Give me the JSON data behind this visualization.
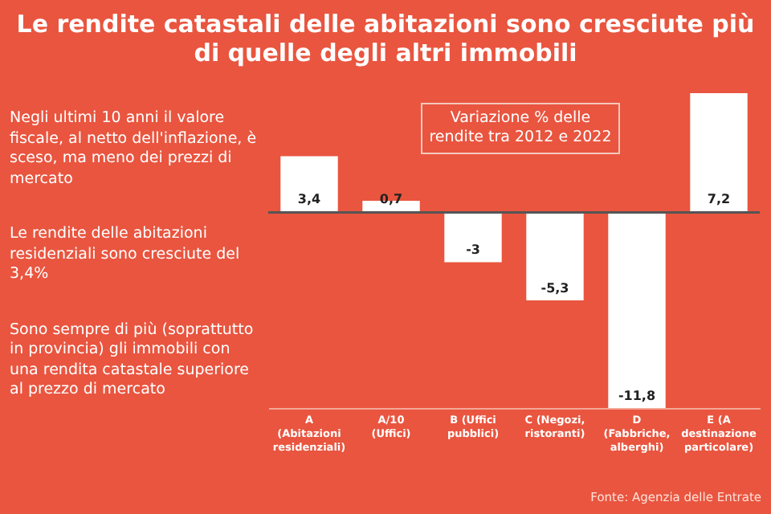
{
  "chart_data": {
    "type": "bar",
    "title": "Le rendite catastali delle abitazioni sono cresciute più di quelle degli altri immobili",
    "subtitle": "Variazione % delle rendite tra 2012 e 2022",
    "categories": [
      "A (Abitazioni residenziali)",
      "A/10 (Uffici)",
      "B (Uffici pubblici)",
      "C (Negozi, ristoranti)",
      "D (Fabbriche, alberghi)",
      "E (A destinazione particolare)"
    ],
    "values": [
      3.4,
      0.7,
      -3,
      -5.3,
      -11.8,
      7.2
    ],
    "value_labels": [
      "3,4",
      "0,7",
      "-3",
      "-5,3",
      "-11,8",
      "7,2"
    ],
    "color": "#ffffff",
    "annotations": [
      "Negli ultimi 10 anni il valore fiscale, al netto dell'inflazione, è sceso, ma meno dei prezzi di mercato",
      "Le rendite delle abitazioni residenziali sono cresciute del 3,4%",
      "Sono sempre di più (soprattutto in provincia) gli immobili con una rendita catastale superiore al prezzo di mercato",
      "Fonte: Agenzia delle Entrate"
    ]
  }
}
